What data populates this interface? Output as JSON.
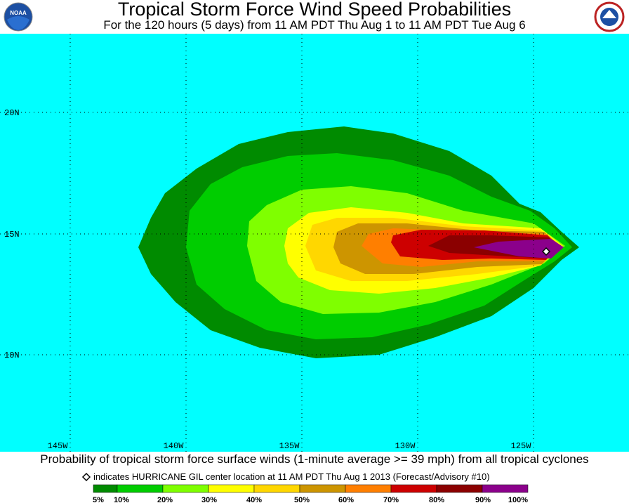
{
  "header": {
    "title": "Tropical Storm Force Wind Speed Probabilities",
    "subtitle": "For the 120 hours (5 days) from 11 AM PDT Thu Aug 1 to 11 AM PDT Tue Aug 6",
    "left_logo": "NOAA"
  },
  "map": {
    "lat_labels": [
      "20N",
      "15N",
      "10N"
    ],
    "lon_labels": [
      "145W",
      "140W",
      "135W",
      "130W",
      "125W"
    ]
  },
  "footer": {
    "caption": "Probability of tropical storm force surface winds (1-minute average >= 39 mph) from all tropical cyclones",
    "note": "indicates HURRICANE GIL center location at 11 AM PDT Thu Aug 1 2013 (Forecast/Advisory #10)"
  },
  "colorbar": {
    "labels": [
      "5%",
      "10%",
      "20%",
      "30%",
      "40%",
      "50%",
      "60%",
      "70%",
      "80%",
      "90%",
      "100%"
    ],
    "colors": [
      "#008b00",
      "#00cd00",
      "#7fff00",
      "#ffff00",
      "#ffd700",
      "#cd9500",
      "#ff7f00",
      "#cd0000",
      "#8b0000",
      "#8b008b"
    ]
  }
}
